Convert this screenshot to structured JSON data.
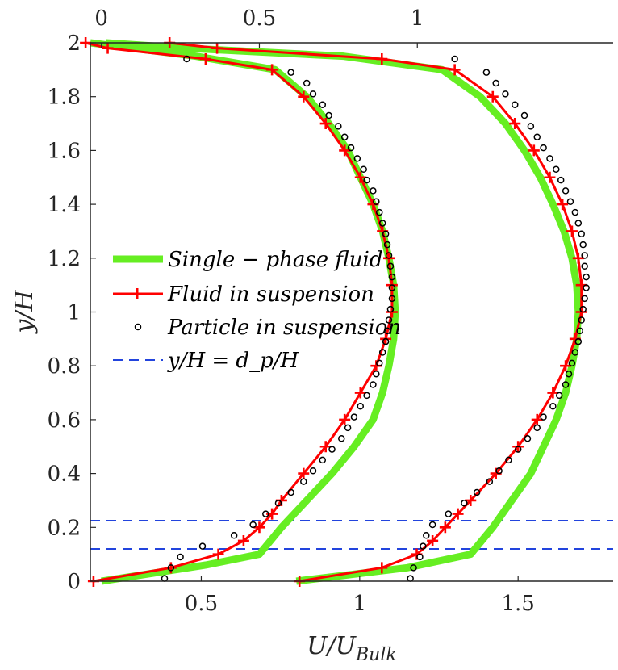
{
  "chart_data": {
    "type": "line",
    "title": "",
    "ylabel": "y/H",
    "xlabel_main": "U/U",
    "xlabel_sub": "Bulk",
    "ylim": [
      0,
      2
    ],
    "xlim_bottom": [
      0.15,
      1.8
    ],
    "xlim_top": [
      -0.035,
      1.62
    ],
    "y_ticks": [
      "0",
      "0.2",
      "0.4",
      "0.6",
      "0.8",
      "1",
      "1.2",
      "1.4",
      "1.6",
      "1.8",
      "2"
    ],
    "x_bottom_ticks": [
      "0.5",
      "1",
      "1.5"
    ],
    "x_top_ticks": [
      "0",
      "0.5",
      "1"
    ],
    "legend": {
      "position": "middle-left",
      "single_phase": "Single − phase fluid",
      "fluid": "Fluid in suspension",
      "particle": "Particle in suspension",
      "dp_line": "y/H = d_p/H"
    },
    "colors": {
      "single_phase": "#66ee22",
      "fluid": "#ff0000",
      "particle": "#000000",
      "dp_line": "#2244dd",
      "axes": "#262626"
    },
    "dp_lines_y": [
      0.225,
      0.12
    ],
    "series": [
      {
        "name": "Single-phase fluid (left profile, top axis)",
        "axis": "top",
        "y": [
          0,
          0.06,
          0.1,
          0.2,
          0.3,
          0.4,
          0.5,
          0.6,
          0.7,
          0.8,
          0.9,
          1.0,
          1.1,
          1.2,
          1.3,
          1.4,
          1.5,
          1.6,
          1.7,
          1.8,
          1.9,
          1.95,
          1.98,
          2.0
        ],
        "x": [
          0,
          0.33,
          0.5,
          0.57,
          0.65,
          0.73,
          0.8,
          0.86,
          0.89,
          0.91,
          0.925,
          0.93,
          0.925,
          0.91,
          0.89,
          0.86,
          0.82,
          0.78,
          0.72,
          0.65,
          0.55,
          0.3,
          0.1,
          -0.035
        ]
      },
      {
        "name": "Fluid in suspension (left profile, top axis)",
        "axis": "top",
        "y": [
          0,
          0.05,
          0.1,
          0.15,
          0.2,
          0.25,
          0.3,
          0.4,
          0.5,
          0.6,
          0.7,
          0.8,
          0.9,
          1.0,
          1.1,
          1.2,
          1.3,
          1.4,
          1.5,
          1.6,
          1.7,
          1.8,
          1.9,
          1.94,
          1.98,
          2.0
        ],
        "x": [
          -0.025,
          0.22,
          0.37,
          0.45,
          0.5,
          0.54,
          0.57,
          0.64,
          0.71,
          0.77,
          0.82,
          0.87,
          0.9,
          0.92,
          0.92,
          0.91,
          0.89,
          0.86,
          0.82,
          0.77,
          0.71,
          0.64,
          0.54,
          0.33,
          0.02,
          -0.05
        ]
      },
      {
        "name": "Particle in suspension (left profile, top axis)",
        "axis": "top",
        "y": [
          0.01,
          0.05,
          0.09,
          0.13,
          0.17,
          0.21,
          0.25,
          0.29,
          0.33,
          0.37,
          0.41,
          0.45,
          0.49,
          0.53,
          0.57,
          0.61,
          0.65,
          0.69,
          0.73,
          0.77,
          0.81,
          0.85,
          0.89,
          0.93,
          0.97,
          1.01,
          1.05,
          1.09,
          1.13,
          1.17,
          1.21,
          1.25,
          1.29,
          1.33,
          1.37,
          1.41,
          1.45,
          1.49,
          1.53,
          1.57,
          1.61,
          1.65,
          1.69,
          1.73,
          1.77,
          1.81,
          1.85,
          1.89,
          1.94
        ],
        "x": [
          0.2,
          0.22,
          0.25,
          0.32,
          0.42,
          0.48,
          0.52,
          0.56,
          0.6,
          0.64,
          0.67,
          0.7,
          0.73,
          0.76,
          0.78,
          0.8,
          0.82,
          0.84,
          0.86,
          0.87,
          0.88,
          0.89,
          0.9,
          0.905,
          0.91,
          0.915,
          0.92,
          0.92,
          0.92,
          0.915,
          0.91,
          0.905,
          0.9,
          0.89,
          0.88,
          0.87,
          0.86,
          0.84,
          0.83,
          0.81,
          0.79,
          0.77,
          0.75,
          0.72,
          0.7,
          0.67,
          0.65,
          0.6,
          0.27
        ]
      },
      {
        "name": "Single-phase fluid (right profile, bottom axis)",
        "axis": "bottom",
        "y": [
          0,
          0.05,
          0.1,
          0.2,
          0.3,
          0.4,
          0.5,
          0.6,
          0.7,
          0.8,
          0.9,
          1.0,
          1.1,
          1.2,
          1.3,
          1.4,
          1.5,
          1.6,
          1.7,
          1.8,
          1.9,
          1.95,
          1.98,
          2.0
        ],
        "x": [
          0.8,
          1.15,
          1.35,
          1.42,
          1.48,
          1.54,
          1.58,
          1.62,
          1.65,
          1.67,
          1.685,
          1.69,
          1.685,
          1.67,
          1.645,
          1.61,
          1.57,
          1.52,
          1.46,
          1.38,
          1.26,
          0.95,
          0.45,
          0.2
        ]
      },
      {
        "name": "Fluid in suspension (right profile, bottom axis)",
        "axis": "bottom",
        "y": [
          0,
          0.05,
          0.1,
          0.15,
          0.2,
          0.25,
          0.3,
          0.4,
          0.5,
          0.6,
          0.7,
          0.8,
          0.9,
          1.0,
          1.1,
          1.2,
          1.3,
          1.4,
          1.5,
          1.6,
          1.7,
          1.8,
          1.9,
          1.94,
          1.98,
          2.0
        ],
        "x": [
          0.81,
          1.07,
          1.18,
          1.23,
          1.27,
          1.31,
          1.35,
          1.43,
          1.5,
          1.56,
          1.61,
          1.65,
          1.68,
          1.7,
          1.7,
          1.69,
          1.67,
          1.64,
          1.6,
          1.55,
          1.49,
          1.42,
          1.3,
          1.07,
          0.55,
          0.4
        ]
      },
      {
        "name": "Particle in suspension (right profile, bottom axis)",
        "axis": "bottom",
        "y": [
          0.01,
          0.05,
          0.09,
          0.13,
          0.17,
          0.21,
          0.25,
          0.29,
          0.33,
          0.37,
          0.41,
          0.45,
          0.49,
          0.53,
          0.57,
          0.61,
          0.65,
          0.69,
          0.73,
          0.77,
          0.81,
          0.85,
          0.89,
          0.93,
          0.97,
          1.01,
          1.05,
          1.09,
          1.13,
          1.17,
          1.21,
          1.25,
          1.29,
          1.33,
          1.37,
          1.41,
          1.45,
          1.49,
          1.53,
          1.57,
          1.61,
          1.65,
          1.69,
          1.73,
          1.77,
          1.81,
          1.85,
          1.89,
          1.94
        ],
        "x": [
          1.16,
          1.17,
          1.19,
          1.2,
          1.21,
          1.23,
          1.28,
          1.33,
          1.37,
          1.41,
          1.44,
          1.47,
          1.5,
          1.53,
          1.56,
          1.58,
          1.61,
          1.63,
          1.65,
          1.66,
          1.67,
          1.68,
          1.69,
          1.695,
          1.7,
          1.705,
          1.71,
          1.715,
          1.715,
          1.71,
          1.71,
          1.705,
          1.7,
          1.69,
          1.68,
          1.665,
          1.65,
          1.635,
          1.62,
          1.6,
          1.58,
          1.56,
          1.54,
          1.52,
          1.49,
          1.46,
          1.43,
          1.4,
          1.3
        ]
      }
    ]
  }
}
